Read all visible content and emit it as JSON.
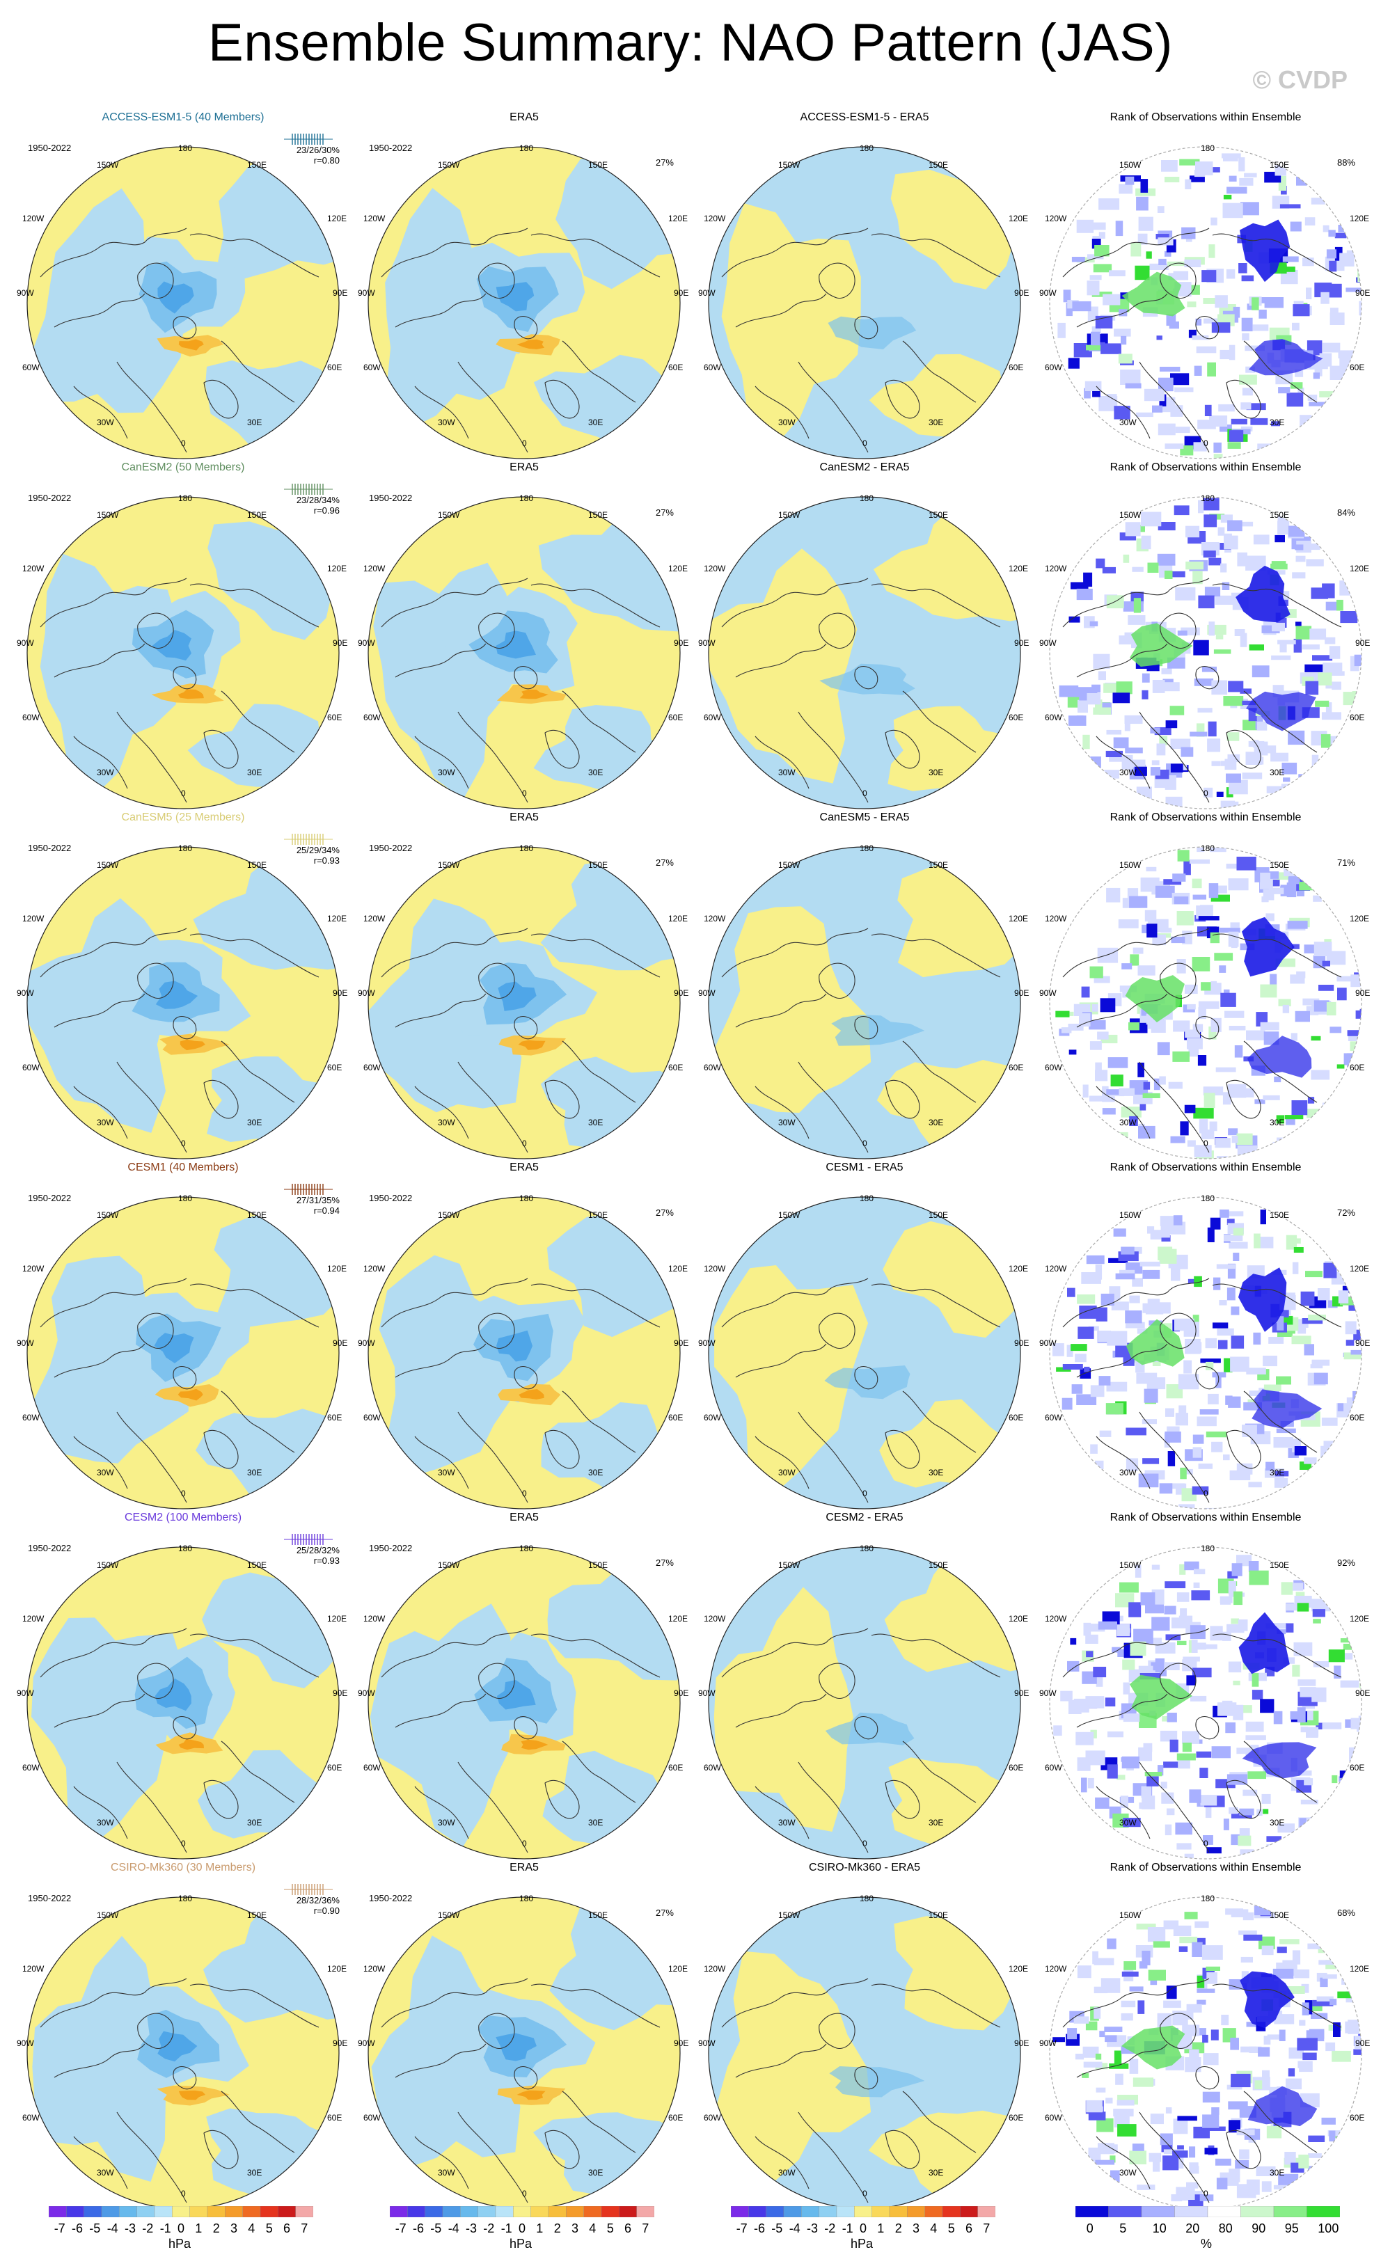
{
  "title": "Ensemble Summary: NAO Pattern (JAS)",
  "copyright": "© CVDP",
  "colors": {
    "positive_light": "#f8f08a",
    "negative_light": "#b3dcf2",
    "negative_mid": "#7ec2ee",
    "negative_dark": "#4fa6e8",
    "positive_mid": "#f7c64b",
    "positive_dark": "#f4a21a",
    "rank_high": "#0000e0",
    "rank_low": "#44ee44"
  },
  "rows": [
    {
      "model": "ACCESS-ESM1-5 (40 Members)",
      "model_color": "#1d6f94",
      "period": "1950-2022",
      "pcts": "23/26/30%",
      "corr": "r=0.80",
      "obs_period": "1950-2022",
      "obs_title": "ERA5",
      "obs_pct": "27%",
      "diff_title": "ACCESS-ESM1-5 - ERA5",
      "rank_title": "Rank of Observations within Ensemble",
      "rank_pct": "88%"
    },
    {
      "model": "CanESM2 (50 Members)",
      "model_color": "#5f8e5f",
      "period": "1950-2022",
      "pcts": "23/28/34%",
      "corr": "r=0.96",
      "obs_period": "1950-2022",
      "obs_title": "ERA5",
      "obs_pct": "27%",
      "diff_title": "CanESM2 - ERA5",
      "rank_title": "Rank of Observations within Ensemble",
      "rank_pct": "84%"
    },
    {
      "model": "CanESM5 (25 Members)",
      "model_color": "#d8cc74",
      "period": "1950-2022",
      "pcts": "25/29/34%",
      "corr": "r=0.93",
      "obs_period": "1950-2022",
      "obs_title": "ERA5",
      "obs_pct": "27%",
      "diff_title": "CanESM5 - ERA5",
      "rank_title": "Rank of Observations within Ensemble",
      "rank_pct": "71%"
    },
    {
      "model": "CESM1 (40 Members)",
      "model_color": "#8a3a12",
      "period": "1950-2022",
      "pcts": "27/31/35%",
      "corr": "r=0.94",
      "obs_period": "1950-2022",
      "obs_title": "ERA5",
      "obs_pct": "27%",
      "diff_title": "CESM1 - ERA5",
      "rank_title": "Rank of Observations within Ensemble",
      "rank_pct": "72%"
    },
    {
      "model": "CESM2 (100 Members)",
      "model_color": "#6a3bdc",
      "period": "1950-2022",
      "pcts": "25/28/32%",
      "corr": "r=0.93",
      "obs_period": "1950-2022",
      "obs_title": "ERA5",
      "obs_pct": "27%",
      "diff_title": "CESM2 - ERA5",
      "rank_title": "Rank of Observations within Ensemble",
      "rank_pct": "92%"
    },
    {
      "model": "CSIRO-Mk360 (30 Members)",
      "model_color": "#c99b6e",
      "period": "1950-2022",
      "pcts": "28/32/36%",
      "corr": "r=0.90",
      "obs_period": "1950-2022",
      "obs_title": "ERA5",
      "obs_pct": "27%",
      "diff_title": "CSIRO-Mk360 - ERA5",
      "rank_title": "Rank of Observations within Ensemble",
      "rank_pct": "68%"
    }
  ],
  "lon_labels": {
    "top": "180",
    "top_left": "150W",
    "top_right": "150E",
    "upper_left": "120W",
    "upper_right": "120E",
    "left": "90W",
    "right": "90E",
    "lower_left": "60W",
    "lower_right": "60E",
    "bottom_left": "30W",
    "bottom_right": "30E",
    "bottom": "0"
  },
  "colorbars": [
    {
      "labels": [
        "-7",
        "-6",
        "-5",
        "-4",
        "-3",
        "-2",
        "-1",
        "0",
        "1",
        "2",
        "3",
        "4",
        "5",
        "6",
        "7"
      ],
      "unit": "hPa"
    },
    {
      "labels": [
        "-7",
        "-6",
        "-5",
        "-4",
        "-3",
        "-2",
        "-1",
        "0",
        "1",
        "2",
        "3",
        "4",
        "5",
        "6",
        "7"
      ],
      "unit": "hPa"
    },
    {
      "labels": [
        "-7",
        "-6",
        "-5",
        "-4",
        "-3",
        "-2",
        "-1",
        "0",
        "1",
        "2",
        "3",
        "4",
        "5",
        "6",
        "7"
      ],
      "unit": "hPa"
    },
    {
      "labels": [
        "0",
        "5",
        "10",
        "20",
        "80",
        "90",
        "95",
        "100"
      ],
      "unit": "%"
    }
  ]
}
